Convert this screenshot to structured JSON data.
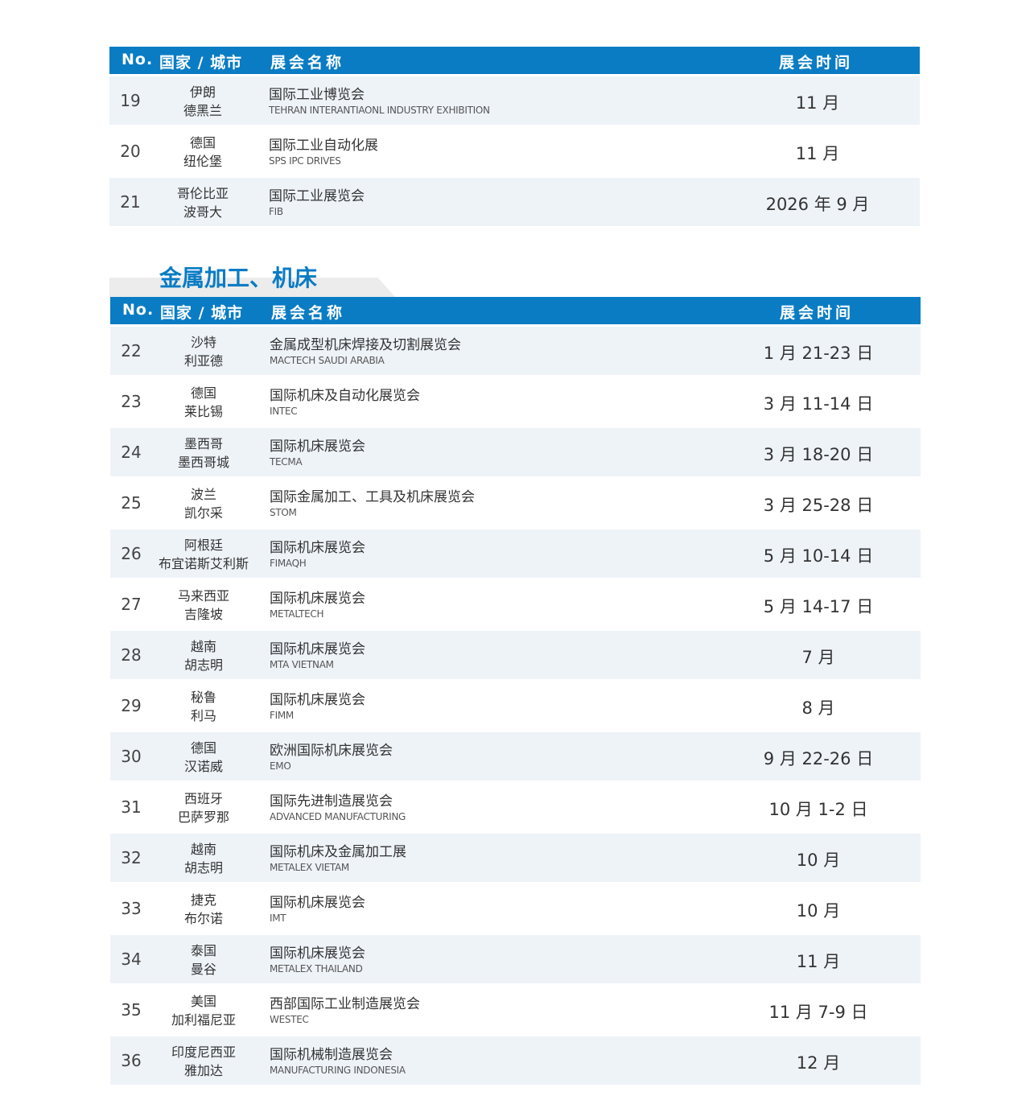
{
  "header": {
    "no": "No.",
    "city": "国家 / 城市",
    "name": "展会名称",
    "date": "展会时间"
  },
  "section_title": "金属加工、机床",
  "table1": [
    {
      "no": "19",
      "country": "伊朗",
      "city": "德黑兰",
      "name": "国际工业博览会",
      "en": "TEHRAN INTERANTIAONL INDUSTRY EXHIBITION",
      "date": "11 月"
    },
    {
      "no": "20",
      "country": "德国",
      "city": "纽伦堡",
      "name": "国际工业自动化展",
      "en": "SPS IPC DRIVES",
      "date": "11 月"
    },
    {
      "no": "21",
      "country": "哥伦比亚",
      "city": "波哥大",
      "name": "国际工业展览会",
      "en": "FIB",
      "date": "2026 年 9 月"
    }
  ],
  "table2": [
    {
      "no": "22",
      "country": "沙特",
      "city": "利亚德",
      "name": "金属成型机床焊接及切割展览会",
      "en": "MACTECH SAUDI ARABIA",
      "date": "1 月 21-23 日"
    },
    {
      "no": "23",
      "country": "德国",
      "city": "莱比锡",
      "name": "国际机床及自动化展览会",
      "en": "INTEC",
      "date": "3 月 11-14 日"
    },
    {
      "no": "24",
      "country": "墨西哥",
      "city": "墨西哥城",
      "name": "国际机床展览会",
      "en": "TECMA",
      "date": "3 月 18-20 日"
    },
    {
      "no": "25",
      "country": "波兰",
      "city": "凯尔采",
      "name": "国际金属加工、工具及机床展览会",
      "en": "STOM",
      "date": "3 月 25-28 日"
    },
    {
      "no": "26",
      "country": "阿根廷",
      "city": "布宜诺斯艾利斯",
      "name": "国际机床展览会",
      "en": "FIMAQH",
      "date": "5 月 10-14 日"
    },
    {
      "no": "27",
      "country": "马来西亚",
      "city": "吉隆坡",
      "name": "国际机床展览会",
      "en": "METALTECH",
      "date": "5 月 14-17 日"
    },
    {
      "no": "28",
      "country": "越南",
      "city": "胡志明",
      "name": "国际机床展览会",
      "en": "MTA VIETNAM",
      "date": "7 月"
    },
    {
      "no": "29",
      "country": "秘鲁",
      "city": "利马",
      "name": "国际机床展览会",
      "en": "FIMM",
      "date": "8 月"
    },
    {
      "no": "30",
      "country": "德国",
      "city": "汉诺威",
      "name": "欧洲国际机床展览会",
      "en": "EMO",
      "date": "9 月 22-26 日"
    },
    {
      "no": "31",
      "country": "西班牙",
      "city": "巴萨罗那",
      "name": "国际先进制造展览会",
      "en": "ADVANCED MANUFACTURING",
      "date": "10 月 1-2 日"
    },
    {
      "no": "32",
      "country": "越南",
      "city": "胡志明",
      "name": "国际机床及金属加工展",
      "en": "METALEX VIETAM",
      "date": "10 月"
    },
    {
      "no": "33",
      "country": "捷克",
      "city": "布尔诺",
      "name": "国际机床展览会",
      "en": "IMT",
      "date": "10 月"
    },
    {
      "no": "34",
      "country": "泰国",
      "city": "曼谷",
      "name": "国际机床展览会",
      "en": "METALEX THAILAND",
      "date": "11 月"
    },
    {
      "no": "35",
      "country": "美国",
      "city": "加利福尼亚",
      "name": "西部国际工业制造展览会",
      "en": "WESTEC",
      "date": "11 月 7-9 日"
    },
    {
      "no": "36",
      "country": "印度尼西亚",
      "city": "雅加达",
      "name": "国际机械制造展览会",
      "en": "MANUFACTURING INDONESIA",
      "date": "12 月"
    }
  ]
}
